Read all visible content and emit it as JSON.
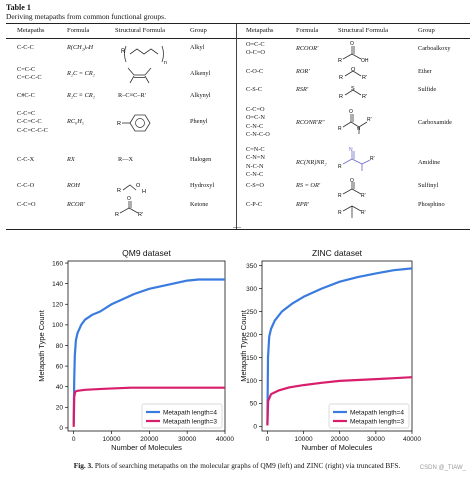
{
  "table": {
    "label": "Table 1",
    "caption": "Deriving metapaths from common functional groups.",
    "headers": [
      "Metapaths",
      "Formula",
      "Structural Formula",
      "Group",
      "Metapaths",
      "Formula",
      "Structural Formula",
      "Group"
    ],
    "left_rows": [
      {
        "metapaths": "C-C-C",
        "formula": "R(CH₂)ₙH",
        "group": "Alkyl"
      },
      {
        "metapaths": "C=C-C\nC=C-C-C",
        "formula": "R₂C = CR₂",
        "group": "Alkenyl"
      },
      {
        "metapaths": "C#C-C",
        "formula": "R₂C ≡ CR₂",
        "structural_text": "R–C≡C–R′",
        "group": "Alkynyl"
      },
      {
        "metapaths": "C-C=C\nC-C=C-C\nC-C=C-C-C",
        "formula": "RC₆H₅",
        "group": "Phenyl"
      },
      {
        "metapaths": "C-C-X",
        "formula": "RX",
        "structural_text": "R—X",
        "group": "Halogen"
      },
      {
        "metapaths": "C-C-O",
        "formula": "ROH",
        "group": "Hydroxyl"
      },
      {
        "metapaths": "C-C=O",
        "formula": "RCOR′",
        "group": "Ketone"
      }
    ],
    "right_rows": [
      {
        "metapaths": "O=C-C\nO-C=O",
        "formula": "RCOOR′",
        "group": "Carboalkoxy"
      },
      {
        "metapaths": "C-O-C",
        "formula": "ROR′",
        "group": "Ether"
      },
      {
        "metapaths": "C-S-C",
        "formula": "RSR′",
        "group": "Sulfide"
      },
      {
        "metapaths": "C-C=O\nO=C-N\nC-N-C\nC-N-C-O",
        "formula": "RCONR′R″",
        "group": "Carboxamide"
      },
      {
        "metapaths": "C=N-C\nC-N=N\nN-C-N\nC-N-C",
        "formula": "RC(NR)NR₂",
        "group": "Amidine"
      },
      {
        "metapaths": "C-S=O",
        "formula": "RS = OR′",
        "group": "Sulfinyl"
      },
      {
        "metapaths": "C-P-C",
        "formula": "RPR′",
        "group": "Phosphino"
      }
    ],
    "ellipsis": "...."
  },
  "figure": {
    "caption_label": "Fig. 3.",
    "caption_text": "Plots of searching metapaths on the molecular graphs of QM9 (left) and ZINC (right) via truncated BFS.",
    "watermark": "CSDN @_TIAW_"
  },
  "chart_data": [
    {
      "type": "line",
      "title": "QM9 dataset",
      "xlabel": "Number of Molecules",
      "ylabel": "Metapath Type Count",
      "xlim": [
        -1500,
        40000
      ],
      "ylim": [
        -3,
        162
      ],
      "xticks": [
        0,
        10000,
        20000,
        30000,
        40000
      ],
      "yticks": [
        0,
        20,
        40,
        60,
        80,
        100,
        120,
        140,
        160
      ],
      "grid": false,
      "legend": "lower-right",
      "series": [
        {
          "name": "Metapath length=4",
          "color": "#3a7be0",
          "x": [
            0,
            150,
            300,
            600,
            1000,
            2000,
            3000,
            5000,
            7000,
            10000,
            13000,
            16000,
            20000,
            25000,
            30000,
            33000,
            40000
          ],
          "y": [
            4,
            45,
            70,
            85,
            92,
            100,
            105,
            110,
            113,
            120,
            125,
            130,
            135,
            139,
            143,
            144,
            144
          ]
        },
        {
          "name": "Metapath length=3",
          "color": "#d81e6b",
          "x": [
            0,
            150,
            400,
            1000,
            3000,
            8000,
            15000,
            25000,
            40000
          ],
          "y": [
            1,
            30,
            35,
            36,
            37,
            38,
            39,
            39,
            39
          ]
        }
      ]
    },
    {
      "type": "line",
      "title": "ZINC dataset",
      "xlabel": "Number of Molecules",
      "ylabel": "Metapath Type Count",
      "xlim": [
        -1500,
        40000
      ],
      "ylim": [
        -10,
        360
      ],
      "xticks": [
        0,
        10000,
        20000,
        30000,
        40000
      ],
      "yticks": [
        0,
        50,
        100,
        150,
        200,
        250,
        300,
        350
      ],
      "grid": false,
      "legend": "lower-right",
      "series": [
        {
          "name": "Metapath length=4",
          "color": "#3a7be0",
          "x": [
            0,
            150,
            500,
            1000,
            2000,
            4000,
            7000,
            10000,
            15000,
            20000,
            25000,
            30000,
            35000,
            40000
          ],
          "y": [
            5,
            150,
            195,
            212,
            230,
            250,
            268,
            282,
            300,
            315,
            325,
            333,
            340,
            344
          ]
        },
        {
          "name": "Metapath length=3",
          "color": "#d81e6b",
          "x": [
            0,
            200,
            1000,
            3000,
            6000,
            10000,
            15000,
            20000,
            25000,
            30000,
            35000,
            40000
          ],
          "y": [
            2,
            55,
            70,
            78,
            85,
            90,
            95,
            99,
            101,
            103,
            105,
            107
          ]
        }
      ]
    }
  ]
}
